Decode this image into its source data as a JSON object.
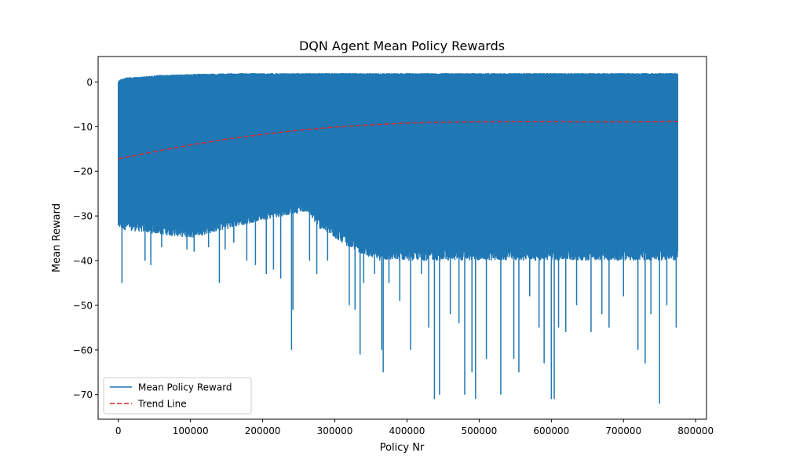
{
  "chart_data": {
    "type": "line",
    "title": "DQN Agent Mean Policy Rewards",
    "xlabel": "Policy Nr",
    "ylabel": "Mean Reward",
    "xlim": [
      -28000,
      815000
    ],
    "ylim": [
      -75.5,
      5.7
    ],
    "xticks": [
      0,
      100000,
      200000,
      300000,
      400000,
      500000,
      600000,
      700000,
      800000
    ],
    "xtick_labels": [
      "0",
      "100000",
      "200000",
      "300000",
      "400000",
      "500000",
      "600000",
      "700000",
      "800000"
    ],
    "yticks": [
      0,
      -10,
      -20,
      -30,
      -40,
      -50,
      -60,
      -70
    ],
    "ytick_labels": [
      "0",
      "−10",
      "−20",
      "−30",
      "−40",
      "−50",
      "−60",
      "−70"
    ],
    "grid": false,
    "legend_position": "lower-left",
    "series": [
      {
        "name": "Mean Policy Reward",
        "color": "#1f77b4",
        "style": "solid",
        "x_range": [
          0,
          775000
        ],
        "band_upper": [
          [
            0,
            0.3
          ],
          [
            5000,
            0.8
          ],
          [
            10000,
            1.0
          ],
          [
            30000,
            1.2
          ],
          [
            60000,
            1.6
          ],
          [
            100000,
            1.8
          ],
          [
            170000,
            2.0
          ],
          [
            775000,
            2.0
          ]
        ],
        "band_lower": [
          [
            0,
            -33
          ],
          [
            50000,
            -34
          ],
          [
            100000,
            -35
          ],
          [
            150000,
            -33
          ],
          [
            200000,
            -31
          ],
          [
            260000,
            -29
          ],
          [
            280000,
            -33
          ],
          [
            330000,
            -38
          ],
          [
            360000,
            -40
          ],
          [
            775000,
            -40
          ]
        ],
        "spikes": [
          [
            5000,
            -45
          ],
          [
            37000,
            -40
          ],
          [
            45000,
            -41
          ],
          [
            60000,
            -37
          ],
          [
            95000,
            -37.5
          ],
          [
            105000,
            -38
          ],
          [
            125000,
            -37
          ],
          [
            140000,
            -45
          ],
          [
            148000,
            -37.5
          ],
          [
            160000,
            -36
          ],
          [
            178000,
            -40
          ],
          [
            190000,
            -41
          ],
          [
            205000,
            -43
          ],
          [
            215000,
            -42
          ],
          [
            225000,
            -44
          ],
          [
            240000,
            -60
          ],
          [
            242000,
            -51
          ],
          [
            265000,
            -40
          ],
          [
            275000,
            -43
          ],
          [
            290000,
            -40
          ],
          [
            320000,
            -50
          ],
          [
            328000,
            -51
          ],
          [
            335000,
            -61
          ],
          [
            340000,
            -45
          ],
          [
            355000,
            -43
          ],
          [
            365000,
            -60
          ],
          [
            367000,
            -65
          ],
          [
            375000,
            -45
          ],
          [
            390000,
            -49
          ],
          [
            405000,
            -60
          ],
          [
            420000,
            -43
          ],
          [
            430000,
            -55
          ],
          [
            438000,
            -71
          ],
          [
            445000,
            -70
          ],
          [
            460000,
            -52
          ],
          [
            472000,
            -54
          ],
          [
            480000,
            -70
          ],
          [
            490000,
            -65
          ],
          [
            495000,
            -71
          ],
          [
            510000,
            -62
          ],
          [
            530000,
            -70
          ],
          [
            548000,
            -62
          ],
          [
            555000,
            -65
          ],
          [
            570000,
            -48
          ],
          [
            583000,
            -55
          ],
          [
            590000,
            -63
          ],
          [
            600000,
            -71
          ],
          [
            604000,
            -71
          ],
          [
            610000,
            -55
          ],
          [
            620000,
            -56
          ],
          [
            635000,
            -50
          ],
          [
            655000,
            -56
          ],
          [
            670000,
            -52
          ],
          [
            680000,
            -55
          ],
          [
            700000,
            -48
          ],
          [
            720000,
            -60
          ],
          [
            730000,
            -63
          ],
          [
            738000,
            -52
          ],
          [
            750000,
            -72
          ],
          [
            760000,
            -50
          ],
          [
            773000,
            -55
          ]
        ]
      },
      {
        "name": "Trend Line",
        "color": "#d62728",
        "style": "dashed",
        "x": [
          0,
          50000,
          100000,
          150000,
          200000,
          250000,
          300000,
          350000,
          400000,
          450000,
          500000,
          550000,
          600000,
          650000,
          700000,
          750000,
          775000
        ],
        "y": [
          -17.2,
          -15.6,
          -14.1,
          -12.8,
          -11.7,
          -10.8,
          -10.1,
          -9.6,
          -9.2,
          -9.0,
          -8.9,
          -8.85,
          -8.85,
          -8.9,
          -8.9,
          -8.85,
          -8.8
        ]
      }
    ]
  }
}
